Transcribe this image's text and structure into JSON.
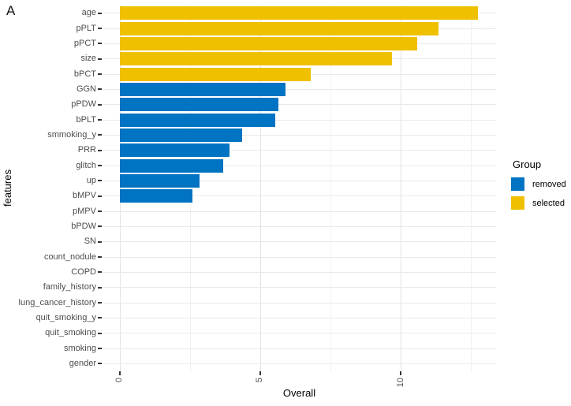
{
  "panel_label": "A",
  "chart_data": {
    "type": "bar",
    "orientation": "horizontal",
    "xlabel": "Overall",
    "ylabel": "features",
    "xlim": [
      0,
      13.4
    ],
    "grid": true,
    "x_ticks": [
      {
        "label": "0",
        "value": 0
      },
      {
        "label": "5",
        "value": 5
      },
      {
        "label": "10",
        "value": 10
      }
    ],
    "x_minor_gridlines": [
      2.5,
      7.5,
      12.5
    ],
    "group_colors": {
      "removed": "#0073C2",
      "selected": "#EFC000"
    },
    "legend": {
      "title": "Group",
      "position": "right",
      "entries": [
        {
          "label": "removed",
          "color": "#0073C2"
        },
        {
          "label": "selected",
          "color": "#EFC000"
        }
      ]
    },
    "bars": [
      {
        "feature": "age",
        "value": 12.75,
        "group": "selected"
      },
      {
        "feature": "pPLT",
        "value": 11.35,
        "group": "selected"
      },
      {
        "feature": "pPCT",
        "value": 10.6,
        "group": "selected"
      },
      {
        "feature": "size",
        "value": 9.7,
        "group": "selected"
      },
      {
        "feature": "bPCT",
        "value": 6.8,
        "group": "selected"
      },
      {
        "feature": "GGN",
        "value": 5.9,
        "group": "removed"
      },
      {
        "feature": "pPDW",
        "value": 5.65,
        "group": "removed"
      },
      {
        "feature": "bPLT",
        "value": 5.55,
        "group": "removed"
      },
      {
        "feature": "smmoking_y",
        "value": 4.35,
        "group": "removed"
      },
      {
        "feature": "PRR",
        "value": 3.9,
        "group": "removed"
      },
      {
        "feature": "glitch",
        "value": 3.7,
        "group": "removed"
      },
      {
        "feature": "up",
        "value": 2.85,
        "group": "removed"
      },
      {
        "feature": "bMPV",
        "value": 2.6,
        "group": "removed"
      },
      {
        "feature": "pMPV",
        "value": 0,
        "group": null
      },
      {
        "feature": "bPDW",
        "value": 0,
        "group": null
      },
      {
        "feature": "SN",
        "value": 0,
        "group": null
      },
      {
        "feature": "count_nodule",
        "value": 0,
        "group": null
      },
      {
        "feature": "COPD",
        "value": 0,
        "group": null
      },
      {
        "feature": "family_history",
        "value": 0,
        "group": null
      },
      {
        "feature": "lung_cancer_history",
        "value": 0,
        "group": null
      },
      {
        "feature": "quit_smoking_y",
        "value": 0,
        "group": null
      },
      {
        "feature": "quit_smoking",
        "value": 0,
        "group": null
      },
      {
        "feature": "smoking",
        "value": 0,
        "group": null
      },
      {
        "feature": "gender",
        "value": 0,
        "group": null
      }
    ]
  }
}
